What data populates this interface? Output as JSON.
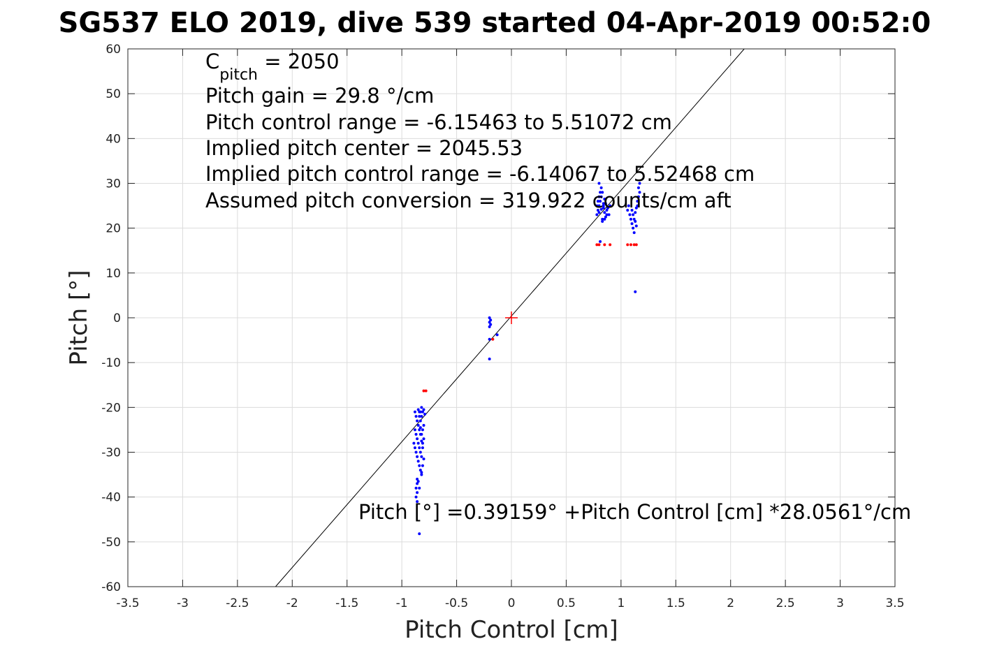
{
  "chart_data": {
    "type": "scatter",
    "title": "SG537 ELO 2019, dive 539 started 04-Apr-2019 00:52:0",
    "xlabel": "Pitch Control [cm]",
    "ylabel": "Pitch [°]",
    "xlim": [
      -3.5,
      3.5
    ],
    "ylim": [
      -60,
      60
    ],
    "xticks": [
      -3.5,
      -3,
      -2.5,
      -2,
      -1.5,
      -1,
      -0.5,
      0,
      0.5,
      1,
      1.5,
      2,
      2.5,
      3,
      3.5
    ],
    "yticks": [
      -60,
      -50,
      -40,
      -30,
      -20,
      -10,
      0,
      10,
      20,
      30,
      40,
      50,
      60
    ],
    "xtick_labels": [
      "-3.5",
      "-3",
      "-2.5",
      "-2",
      "-1.5",
      "-1",
      "-0.5",
      "0",
      "0.5",
      "1",
      "1.5",
      "2",
      "2.5",
      "3",
      "3.5"
    ],
    "ytick_labels": [
      "-60",
      "-50",
      "-40",
      "-30",
      "-20",
      "-10",
      "0",
      "10",
      "20",
      "30",
      "40",
      "50",
      "60"
    ],
    "grid": true,
    "annotations": {
      "c_pitch_base": "C",
      "c_pitch_sub": "pitch",
      "c_pitch_value": " = 2050",
      "lines": [
        "Pitch gain = 29.8 °/cm",
        "Pitch control range = -6.15463 to 5.51072 cm",
        "Implied pitch center = 2045.53",
        "Implied pitch control range = -6.14067 to 5.52468 cm",
        "Assumed pitch conversion = 319.922 counts/cm aft"
      ],
      "fit_equation": "Pitch [°] =0.39159° +Pitch Control [cm] *28.0561°/cm"
    },
    "fit_line": {
      "intercept": 0.39159,
      "slope": 28.0561,
      "color": "#000000"
    },
    "center_marker": {
      "x": 0,
      "y": 0,
      "color": "#ff0000"
    },
    "series": [
      {
        "color": "#0000ff",
        "points": [
          [
            -0.88,
            -21
          ],
          [
            -0.87,
            -22
          ],
          [
            -0.86,
            -23
          ],
          [
            -0.85,
            -24
          ],
          [
            -0.84,
            -22
          ],
          [
            -0.83,
            -21
          ],
          [
            -0.82,
            -20
          ],
          [
            -0.81,
            -21
          ],
          [
            -0.8,
            -20.5
          ],
          [
            -0.79,
            -21.5
          ],
          [
            -0.88,
            -25
          ],
          [
            -0.87,
            -26
          ],
          [
            -0.86,
            -27
          ],
          [
            -0.85,
            -28
          ],
          [
            -0.84,
            -29
          ],
          [
            -0.83,
            -30
          ],
          [
            -0.82,
            -31
          ],
          [
            -0.81,
            -25
          ],
          [
            -0.8,
            -24
          ],
          [
            -0.82,
            -26
          ],
          [
            -0.89,
            -28
          ],
          [
            -0.88,
            -29
          ],
          [
            -0.87,
            -30
          ],
          [
            -0.86,
            -31
          ],
          [
            -0.85,
            -32
          ],
          [
            -0.84,
            -33
          ],
          [
            -0.83,
            -34
          ],
          [
            -0.82,
            -35
          ],
          [
            -0.81,
            -28
          ],
          [
            -0.8,
            -27
          ],
          [
            -0.86,
            -36
          ],
          [
            -0.86,
            -37
          ],
          [
            -0.87,
            -38
          ],
          [
            -0.86,
            -39
          ],
          [
            -0.87,
            -40
          ],
          [
            -0.86,
            -41
          ],
          [
            -0.85,
            -36.5
          ],
          [
            -0.84,
            -38
          ],
          [
            -0.83,
            -23
          ],
          [
            -0.82,
            -22
          ],
          [
            -0.85,
            -20.5
          ],
          [
            -0.84,
            -21
          ],
          [
            -0.83,
            -24.5
          ],
          [
            -0.82,
            -27.5
          ],
          [
            -0.81,
            -29
          ],
          [
            -0.8,
            -31.5
          ],
          [
            -0.81,
            -33
          ],
          [
            -0.82,
            -34.5
          ],
          [
            -0.83,
            -26
          ],
          [
            -0.84,
            -25
          ],
          [
            -0.84,
            -48.2
          ],
          [
            -0.2,
            0
          ],
          [
            -0.2,
            -1
          ],
          [
            -0.2,
            -2
          ],
          [
            -0.19,
            -0.5
          ],
          [
            -0.19,
            -1.5
          ],
          [
            -0.2,
            -4.8
          ],
          [
            -0.13,
            -3.8
          ],
          [
            -0.2,
            -9.2
          ],
          [
            0.78,
            23
          ],
          [
            0.79,
            24
          ],
          [
            0.8,
            25
          ],
          [
            0.81,
            26
          ],
          [
            0.82,
            27
          ],
          [
            0.83,
            28
          ],
          [
            0.84,
            24.5
          ],
          [
            0.85,
            23.5
          ],
          [
            0.86,
            22.5
          ],
          [
            0.87,
            24
          ],
          [
            0.79,
            26
          ],
          [
            0.8,
            27
          ],
          [
            0.81,
            28
          ],
          [
            0.82,
            29
          ],
          [
            0.83,
            22
          ],
          [
            0.84,
            25
          ],
          [
            0.85,
            26.5
          ],
          [
            0.86,
            25.5
          ],
          [
            0.87,
            23
          ],
          [
            0.88,
            24.5
          ],
          [
            0.9,
            25
          ],
          [
            0.8,
            30
          ],
          [
            0.83,
            21.5
          ],
          [
            0.85,
            22
          ],
          [
            0.89,
            23
          ],
          [
            0.81,
            17
          ],
          [
            0.84,
            25.5
          ],
          [
            0.82,
            24.2
          ],
          [
            0.78,
            25
          ],
          [
            0.8,
            23.5
          ],
          [
            1.06,
            24
          ],
          [
            1.07,
            25
          ],
          [
            1.08,
            23
          ],
          [
            1.09,
            22
          ],
          [
            1.1,
            21
          ],
          [
            1.11,
            20
          ],
          [
            1.12,
            19
          ],
          [
            1.13,
            23.5
          ],
          [
            1.14,
            24.5
          ],
          [
            1.15,
            26
          ],
          [
            1.16,
            27
          ],
          [
            1.17,
            28
          ],
          [
            1.16,
            29
          ],
          [
            1.17,
            30
          ],
          [
            1.1,
            24
          ],
          [
            1.11,
            23
          ],
          [
            1.12,
            22
          ],
          [
            1.13,
            21.5
          ],
          [
            1.14,
            20.5
          ],
          [
            1.15,
            25
          ],
          [
            1.13,
            5.8
          ]
        ]
      },
      {
        "color": "#ff0000",
        "points": [
          [
            -0.8,
            -16.3
          ],
          [
            -0.78,
            -16.3
          ],
          [
            -0.17,
            -4.8
          ],
          [
            0.78,
            16.3
          ],
          [
            0.8,
            16.3
          ],
          [
            0.85,
            16.3
          ],
          [
            0.9,
            16.3
          ],
          [
            1.06,
            16.3
          ],
          [
            1.09,
            16.3
          ],
          [
            1.12,
            16.3
          ],
          [
            1.14,
            16.3
          ]
        ]
      }
    ]
  }
}
